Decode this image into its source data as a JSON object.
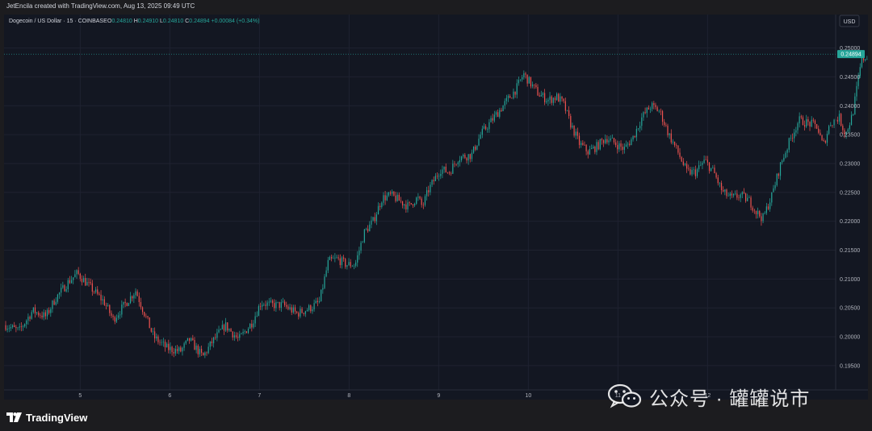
{
  "caption": "JetEncila created with TradingView.com, Aug 13, 2025 09:49 UTC",
  "brand": "TradingView",
  "watermark": "公众号 · 罐罐说市",
  "colors": {
    "up": "#26a69a",
    "down": "#ef5350",
    "price_tag": "#26a69a"
  },
  "chart_data": {
    "type": "candlestick",
    "symbol_title": "Dogecoin / US Dollar · 15 · COINBASE",
    "ohlc_labels": [
      "O",
      "H",
      "L",
      "C"
    ],
    "ohlc_values": [
      "0.24810",
      "0.24910",
      "0.24810",
      "0.24894"
    ],
    "change": "+0.00084 (+0.34%)",
    "currency": "USD",
    "last_price": "0.24894",
    "ylim": [
      0.1908,
      0.2558
    ],
    "y_ticks": [
      "0.25000",
      "0.24500",
      "0.24000",
      "0.23500",
      "0.23000",
      "0.22500",
      "0.22000",
      "0.21500",
      "0.21000",
      "0.20500",
      "0.20000",
      "0.19500"
    ],
    "x_ticks": [
      "5",
      "6",
      "7",
      "8",
      "9",
      "10",
      "11",
      "12"
    ],
    "grid": true,
    "series": [
      {
        "values_approx_close": [
          [
            0.0,
            0.202
          ],
          [
            0.15,
            0.201
          ],
          [
            0.3,
            0.2045
          ],
          [
            0.45,
            0.2035
          ],
          [
            0.55,
            0.2065
          ],
          [
            0.7,
            0.2095
          ],
          [
            0.8,
            0.211
          ],
          [
            0.95,
            0.2085
          ],
          [
            1.1,
            0.206
          ],
          [
            1.2,
            0.203
          ],
          [
            1.3,
            0.205
          ],
          [
            1.45,
            0.208
          ],
          [
            1.55,
            0.204
          ],
          [
            1.65,
            0.2
          ],
          [
            1.8,
            0.198
          ],
          [
            1.95,
            0.1975
          ],
          [
            2.05,
            0.1995
          ],
          [
            2.2,
            0.1965
          ],
          [
            2.3,
            0.199
          ],
          [
            2.45,
            0.202
          ],
          [
            2.6,
            0.1995
          ],
          [
            2.75,
            0.2025
          ],
          [
            2.85,
            0.206
          ],
          [
            2.95,
            0.2055
          ],
          [
            3.1,
            0.2055
          ],
          [
            3.25,
            0.204
          ],
          [
            3.4,
            0.205
          ],
          [
            3.5,
            0.206
          ],
          [
            3.6,
            0.213
          ],
          [
            3.7,
            0.2135
          ],
          [
            3.8,
            0.2125
          ],
          [
            3.9,
            0.2125
          ],
          [
            4.0,
            0.218
          ],
          [
            4.1,
            0.22
          ],
          [
            4.2,
            0.224
          ],
          [
            4.3,
            0.2245
          ],
          [
            4.4,
            0.2235
          ],
          [
            4.5,
            0.2225
          ],
          [
            4.55,
            0.2235
          ],
          [
            4.6,
            0.224
          ],
          [
            4.65,
            0.2225
          ],
          [
            4.72,
            0.2255
          ],
          [
            4.85,
            0.229
          ],
          [
            4.95,
            0.2285
          ],
          [
            5.05,
            0.231
          ],
          [
            5.2,
            0.2315
          ],
          [
            5.3,
            0.235
          ],
          [
            5.4,
            0.237
          ],
          [
            5.5,
            0.239
          ],
          [
            5.6,
            0.241
          ],
          [
            5.7,
            0.243
          ],
          [
            5.78,
            0.2455
          ],
          [
            5.85,
            0.244
          ],
          [
            5.95,
            0.242
          ],
          [
            6.05,
            0.241
          ],
          [
            6.15,
            0.2415
          ],
          [
            6.22,
            0.2405
          ],
          [
            6.3,
            0.237
          ],
          [
            6.4,
            0.2335
          ],
          [
            6.5,
            0.232
          ],
          [
            6.6,
            0.233
          ],
          [
            6.7,
            0.2345
          ],
          [
            6.8,
            0.2335
          ],
          [
            6.9,
            0.2325
          ],
          [
            7.0,
            0.2345
          ],
          [
            7.1,
            0.238
          ],
          [
            7.2,
            0.24
          ],
          [
            7.3,
            0.239
          ],
          [
            7.4,
            0.235
          ],
          [
            7.5,
            0.232
          ],
          [
            7.6,
            0.2285
          ],
          [
            7.7,
            0.2285
          ],
          [
            7.8,
            0.2305
          ],
          [
            7.9,
            0.2285
          ],
          [
            8.0,
            0.225
          ],
          [
            8.1,
            0.224
          ],
          [
            8.2,
            0.2245
          ],
          [
            8.3,
            0.2235
          ],
          [
            8.38,
            0.2215
          ],
          [
            8.45,
            0.2205
          ],
          [
            8.55,
            0.2245
          ],
          [
            8.65,
            0.23
          ],
          [
            8.75,
            0.234
          ],
          [
            8.85,
            0.2375
          ],
          [
            8.95,
            0.237
          ],
          [
            9.05,
            0.2365
          ],
          [
            9.12,
            0.233
          ],
          [
            9.2,
            0.237
          ],
          [
            9.3,
            0.238
          ],
          [
            9.37,
            0.235
          ],
          [
            9.45,
            0.2385
          ],
          [
            9.55,
            0.248
          ],
          [
            9.65,
            0.2489
          ]
        ]
      }
    ],
    "x_value_note": ""
  }
}
